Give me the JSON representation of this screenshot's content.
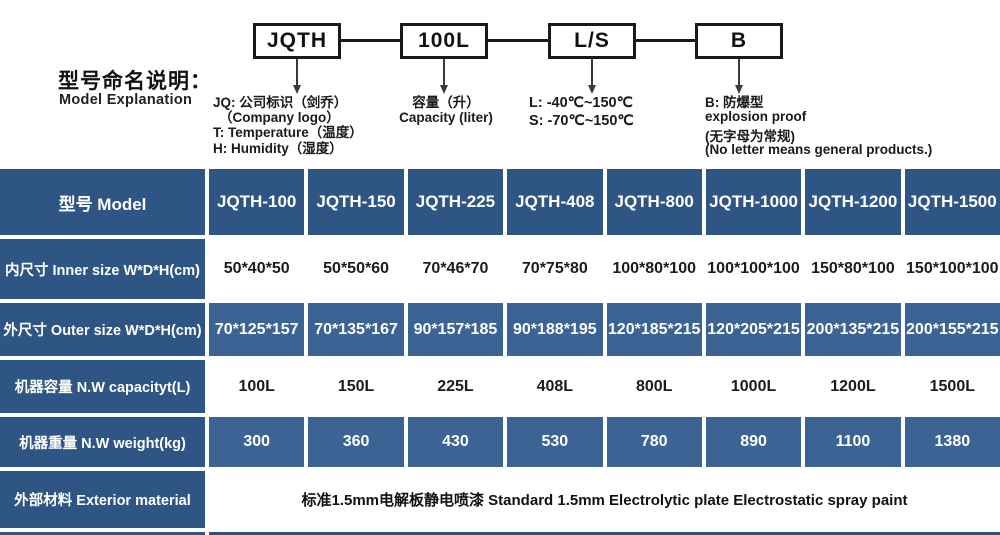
{
  "diagram": {
    "title_zh": "型号命名说明：",
    "title_en": "Model Explanation",
    "boxes": [
      {
        "label": "JQTH",
        "desc_lines": [
          "JQ: 公司标识（剑乔）",
          "（Company logo）",
          "T: Temperature（温度）",
          "H: Humidity（湿度）"
        ]
      },
      {
        "label": "100L",
        "desc_lines": [
          "容量（升）",
          "Capacity (liter)"
        ]
      },
      {
        "label": "L/S",
        "desc_lines": [
          "L: -40℃~150℃",
          "S: -70℃~150℃"
        ]
      },
      {
        "label": "B",
        "desc_lines": [
          "B: 防爆型",
          "explosion proof",
          "(无字母为常规)",
          "(No letter means general products.)"
        ]
      }
    ]
  },
  "table": {
    "header": [
      "型号 Model",
      "JQTH-100",
      "JQTH-150",
      "JQTH-225",
      "JQTH-408",
      "JQTH-800",
      "JQTH-1000",
      "JQTH-1200",
      "JQTH-1500"
    ],
    "rows": [
      {
        "label": "内尺寸 Inner size W*D*H(cm)",
        "values": [
          "50*40*50",
          "50*50*60",
          "70*46*70",
          "70*75*80",
          "100*80*100",
          "100*100*100",
          "150*80*100",
          "150*100*100"
        ],
        "style": "white"
      },
      {
        "label": "外尺寸 Outer size W*D*H(cm)",
        "values": [
          "70*125*157",
          "70*135*167",
          "90*157*185",
          "90*188*195",
          "120*185*215",
          "120*205*215",
          "200*135*215",
          "200*155*215"
        ],
        "style": "blue"
      },
      {
        "label": "机器容量 N.W capacityt(L)",
        "values": [
          "100L",
          "150L",
          "225L",
          "408L",
          "800L",
          "1000L",
          "1200L",
          "1500L"
        ],
        "style": "white"
      },
      {
        "label": "机器重量 N.W weight(kg)",
        "values": [
          "300",
          "360",
          "430",
          "530",
          "780",
          "890",
          "1100",
          "1380"
        ],
        "style": "blue"
      },
      {
        "label": "外部材料 Exterior material",
        "span_value": "标准1.5mm电解板静电喷漆  Standard 1.5mm Electrolytic plate Electrostatic spray paint",
        "style": "span"
      }
    ],
    "colors": {
      "header_blue": "#2E5584",
      "row_blue": "#3B6394",
      "strip_blue": "#2F527B"
    }
  }
}
